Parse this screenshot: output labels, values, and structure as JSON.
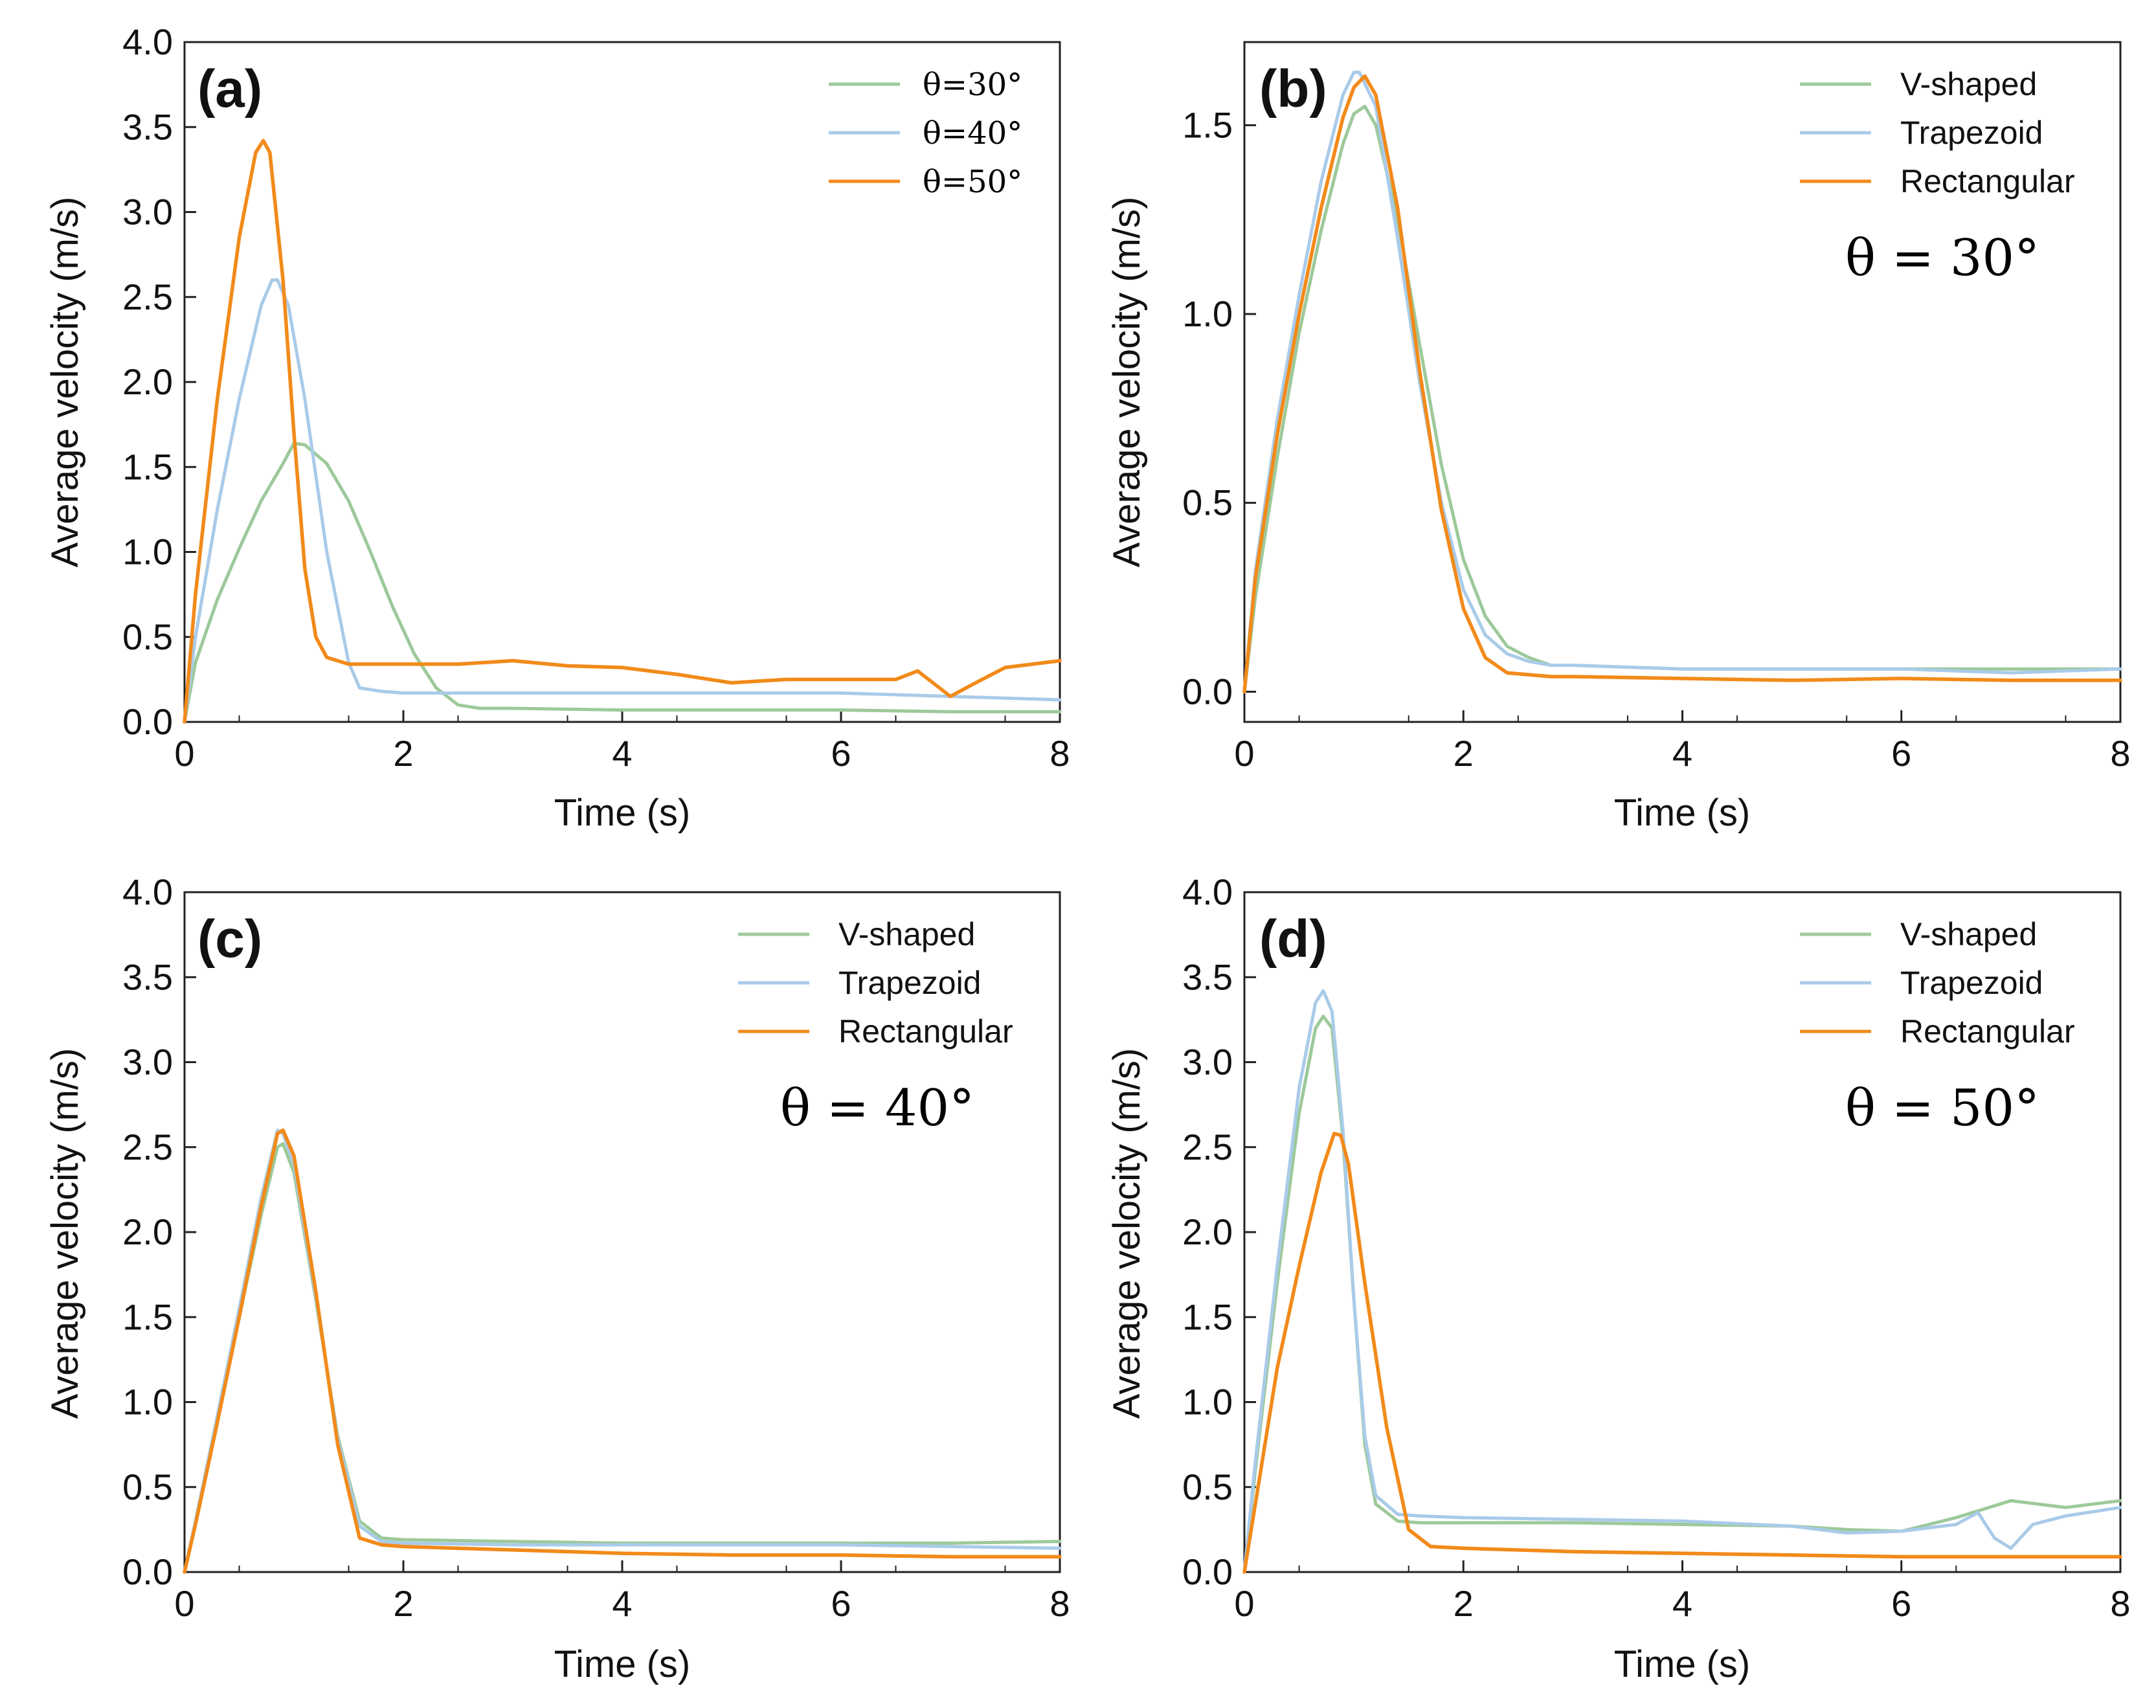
{
  "figure": {
    "xlabel": "Time (s)",
    "ylabel": "Average velocity (m/s)",
    "colors": {
      "green": "#9dc99a",
      "blue": "#a9cbe9",
      "orange": "#f28a1a"
    }
  },
  "chart_data": [
    {
      "id": "a",
      "label": "(a)",
      "type": "line",
      "xlabel": "Time (s)",
      "ylabel": "Average velocity (m/s)",
      "xlim": [
        0,
        8
      ],
      "ylim": [
        0,
        4
      ],
      "xticks": [
        "0",
        "2",
        "4",
        "6",
        "8"
      ],
      "yticks": [
        "0.0",
        "0.5",
        "1.0",
        "1.5",
        "2.0",
        "2.5",
        "3.0",
        "3.5",
        "4.0"
      ],
      "annotation": "",
      "legend_position": "top-right",
      "series": [
        {
          "name": "θ=30°",
          "color": "#9dc99a",
          "x": [
            0,
            0.1,
            0.3,
            0.5,
            0.7,
            0.9,
            1.0,
            1.1,
            1.3,
            1.5,
            1.7,
            1.9,
            2.1,
            2.3,
            2.5,
            2.7,
            3,
            4,
            5,
            6,
            7,
            8
          ],
          "y": [
            0,
            0.35,
            0.72,
            1.02,
            1.3,
            1.52,
            1.64,
            1.63,
            1.52,
            1.3,
            1.0,
            0.68,
            0.4,
            0.2,
            0.1,
            0.08,
            0.08,
            0.07,
            0.07,
            0.07,
            0.06,
            0.06
          ]
        },
        {
          "name": "θ=40°",
          "color": "#a9cbe9",
          "x": [
            0,
            0.1,
            0.3,
            0.5,
            0.7,
            0.8,
            0.85,
            0.95,
            1.1,
            1.3,
            1.5,
            1.6,
            1.8,
            2,
            3,
            4,
            5,
            6,
            6.5,
            7,
            7.5,
            8
          ],
          "y": [
            0,
            0.5,
            1.25,
            1.9,
            2.45,
            2.6,
            2.6,
            2.45,
            1.9,
            1.0,
            0.35,
            0.2,
            0.18,
            0.17,
            0.17,
            0.17,
            0.17,
            0.17,
            0.16,
            0.15,
            0.14,
            0.13
          ]
        },
        {
          "name": "θ=50°",
          "color": "#f28a1a",
          "x": [
            0,
            0.1,
            0.3,
            0.5,
            0.65,
            0.72,
            0.78,
            0.9,
            1.0,
            1.1,
            1.2,
            1.3,
            1.5,
            2,
            2.5,
            3,
            3.5,
            4,
            4.5,
            5,
            5.5,
            6,
            6.5,
            6.7,
            6.9,
            7.0,
            7.2,
            7.5,
            8
          ],
          "y": [
            0,
            0.75,
            1.9,
            2.85,
            3.35,
            3.42,
            3.35,
            2.6,
            1.7,
            0.9,
            0.5,
            0.38,
            0.34,
            0.34,
            0.34,
            0.36,
            0.33,
            0.32,
            0.28,
            0.23,
            0.25,
            0.25,
            0.25,
            0.3,
            0.2,
            0.15,
            0.22,
            0.32,
            0.36
          ]
        }
      ]
    },
    {
      "id": "b",
      "label": "(b)",
      "type": "line",
      "xlabel": "Time (s)",
      "ylabel": "Average velocity (m/s)",
      "xlim": [
        0,
        8
      ],
      "ylim": [
        -0.08,
        1.72
      ],
      "xticks": [
        "0",
        "2",
        "4",
        "6",
        "8"
      ],
      "yticks": [
        "0.0",
        "0.5",
        "1.0",
        "1.5"
      ],
      "annotation": "θ = 30°",
      "legend_position": "top-right",
      "series": [
        {
          "name": "V-shaped",
          "color": "#9dc99a",
          "x": [
            0,
            0.1,
            0.3,
            0.5,
            0.7,
            0.9,
            1.0,
            1.1,
            1.2,
            1.4,
            1.6,
            1.8,
            2.0,
            2.2,
            2.4,
            2.6,
            2.8,
            3,
            4,
            5,
            6,
            7,
            8
          ],
          "y": [
            0,
            0.25,
            0.62,
            0.95,
            1.22,
            1.45,
            1.53,
            1.55,
            1.5,
            1.25,
            0.92,
            0.6,
            0.35,
            0.2,
            0.12,
            0.09,
            0.07,
            0.07,
            0.06,
            0.06,
            0.06,
            0.06,
            0.06
          ]
        },
        {
          "name": "Trapezoid",
          "color": "#a9cbe9",
          "x": [
            0,
            0.1,
            0.3,
            0.5,
            0.7,
            0.9,
            1.0,
            1.05,
            1.2,
            1.4,
            1.6,
            1.8,
            2.0,
            2.2,
            2.4,
            2.6,
            2.8,
            3,
            4,
            5,
            6,
            7,
            8
          ],
          "y": [
            0,
            0.32,
            0.72,
            1.05,
            1.35,
            1.58,
            1.64,
            1.64,
            1.55,
            1.2,
            0.82,
            0.5,
            0.27,
            0.15,
            0.1,
            0.08,
            0.07,
            0.07,
            0.06,
            0.06,
            0.06,
            0.05,
            0.06
          ]
        },
        {
          "name": "Rectangular",
          "color": "#f28a1a",
          "x": [
            0,
            0.1,
            0.3,
            0.5,
            0.7,
            0.9,
            1.0,
            1.1,
            1.2,
            1.4,
            1.6,
            1.8,
            2.0,
            2.2,
            2.4,
            2.6,
            2.8,
            3,
            4,
            5,
            6,
            7,
            8
          ],
          "y": [
            0,
            0.3,
            0.68,
            1.0,
            1.28,
            1.52,
            1.6,
            1.63,
            1.58,
            1.28,
            0.85,
            0.48,
            0.22,
            0.09,
            0.05,
            0.045,
            0.04,
            0.04,
            0.035,
            0.03,
            0.035,
            0.03,
            0.03
          ]
        }
      ]
    },
    {
      "id": "c",
      "label": "(c)",
      "type": "line",
      "xlabel": "Time (s)",
      "ylabel": "Average velocity (m/s)",
      "xlim": [
        0,
        8
      ],
      "ylim": [
        0,
        4
      ],
      "xticks": [
        "0",
        "2",
        "4",
        "6",
        "8"
      ],
      "yticks": [
        "0.0",
        "0.5",
        "1.0",
        "1.5",
        "2.0",
        "2.5",
        "3.0",
        "3.5",
        "4.0"
      ],
      "annotation": "θ = 40°",
      "legend_position": "top-right",
      "series": [
        {
          "name": "V-shaped",
          "color": "#9dc99a",
          "x": [
            0,
            0.1,
            0.3,
            0.5,
            0.7,
            0.85,
            0.9,
            1.0,
            1.2,
            1.4,
            1.6,
            1.8,
            2,
            3,
            4,
            5,
            6,
            7,
            8
          ],
          "y": [
            0,
            0.3,
            0.9,
            1.5,
            2.1,
            2.5,
            2.52,
            2.35,
            1.6,
            0.8,
            0.3,
            0.2,
            0.19,
            0.18,
            0.17,
            0.17,
            0.17,
            0.17,
            0.18
          ]
        },
        {
          "name": "Trapezoid",
          "color": "#a9cbe9",
          "x": [
            0,
            0.1,
            0.3,
            0.5,
            0.7,
            0.85,
            0.9,
            1.0,
            1.2,
            1.4,
            1.6,
            1.8,
            2,
            3,
            4,
            5,
            6,
            7,
            8
          ],
          "y": [
            0,
            0.3,
            0.92,
            1.55,
            2.2,
            2.6,
            2.58,
            2.4,
            1.62,
            0.78,
            0.27,
            0.18,
            0.17,
            0.16,
            0.16,
            0.16,
            0.16,
            0.15,
            0.14
          ]
        },
        {
          "name": "Rectangular",
          "color": "#f28a1a",
          "x": [
            0,
            0.1,
            0.3,
            0.5,
            0.7,
            0.85,
            0.9,
            1.0,
            1.2,
            1.4,
            1.6,
            1.8,
            2,
            3,
            4,
            5,
            6,
            7,
            8
          ],
          "y": [
            0,
            0.28,
            0.88,
            1.5,
            2.15,
            2.58,
            2.6,
            2.45,
            1.65,
            0.75,
            0.2,
            0.16,
            0.15,
            0.13,
            0.11,
            0.1,
            0.1,
            0.09,
            0.09
          ]
        }
      ]
    },
    {
      "id": "d",
      "label": "(d)",
      "type": "line",
      "xlabel": "Time (s)",
      "ylabel": "Average velocity (m/s)",
      "xlim": [
        0,
        8
      ],
      "ylim": [
        0,
        4
      ],
      "xticks": [
        "0",
        "2",
        "4",
        "6",
        "8"
      ],
      "yticks": [
        "0.0",
        "0.5",
        "1.0",
        "1.5",
        "2.0",
        "2.5",
        "3.0",
        "3.5",
        "4.0"
      ],
      "annotation": "θ = 50°",
      "legend_position": "top-right",
      "series": [
        {
          "name": "V-shaped",
          "color": "#9dc99a",
          "x": [
            0,
            0.1,
            0.3,
            0.5,
            0.65,
            0.72,
            0.8,
            0.9,
            1.0,
            1.1,
            1.2,
            1.4,
            1.6,
            2,
            3,
            4,
            5,
            5.5,
            6,
            6.5,
            7,
            7.5,
            8
          ],
          "y": [
            0,
            0.6,
            1.7,
            2.7,
            3.2,
            3.27,
            3.2,
            2.55,
            1.6,
            0.75,
            0.4,
            0.3,
            0.29,
            0.29,
            0.29,
            0.28,
            0.27,
            0.25,
            0.24,
            0.32,
            0.42,
            0.38,
            0.42
          ]
        },
        {
          "name": "Trapezoid",
          "color": "#a9cbe9",
          "x": [
            0,
            0.1,
            0.3,
            0.5,
            0.65,
            0.72,
            0.8,
            0.9,
            1.0,
            1.1,
            1.2,
            1.4,
            1.6,
            2,
            3,
            4,
            5,
            5.5,
            6,
            6.5,
            6.7,
            6.85,
            7.0,
            7.2,
            7.5,
            8
          ],
          "y": [
            0,
            0.65,
            1.8,
            2.85,
            3.35,
            3.42,
            3.3,
            2.6,
            1.6,
            0.8,
            0.45,
            0.34,
            0.33,
            0.32,
            0.31,
            0.3,
            0.27,
            0.23,
            0.24,
            0.28,
            0.35,
            0.2,
            0.14,
            0.28,
            0.33,
            0.38
          ]
        },
        {
          "name": "Rectangular",
          "color": "#f28a1a",
          "x": [
            0,
            0.1,
            0.3,
            0.5,
            0.7,
            0.82,
            0.88,
            0.95,
            1.1,
            1.3,
            1.5,
            1.7,
            2,
            3,
            4,
            5,
            6,
            7,
            8
          ],
          "y": [
            0,
            0.4,
            1.2,
            1.8,
            2.35,
            2.58,
            2.57,
            2.4,
            1.7,
            0.85,
            0.25,
            0.15,
            0.14,
            0.12,
            0.11,
            0.1,
            0.09,
            0.09,
            0.09
          ]
        }
      ]
    }
  ]
}
